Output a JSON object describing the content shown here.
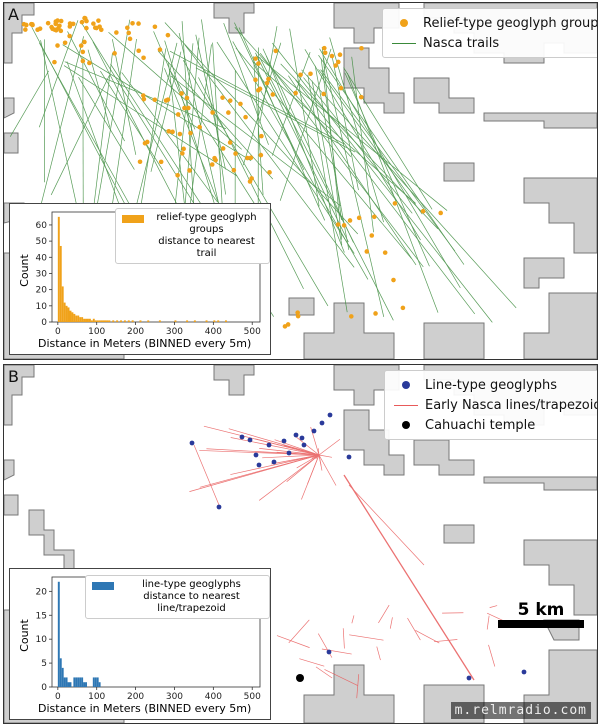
{
  "panels": {
    "a": {
      "label": "A",
      "legend": {
        "items": [
          {
            "label": "Relief-type geoglyph groups",
            "color": "#f0a21a",
            "kind": "dot"
          },
          {
            "label": "Nasca trails",
            "color": "#3a8a3a",
            "kind": "line"
          }
        ]
      },
      "inset": {
        "legend_line1": "relief-type geoglyph groups",
        "legend_line2": "distance to nearest trail",
        "ylabel": "Count",
        "xlabel": "Distance in Meters (BINNED every 5m)",
        "color": "#f0a21a"
      }
    },
    "b": {
      "label": "B",
      "legend": {
        "items": [
          {
            "label": "Line-type geoglyphs",
            "color": "#2a3a9a",
            "kind": "dot"
          },
          {
            "label": "Early Nasca lines/trapezoids",
            "color": "#e85a5a",
            "kind": "line"
          },
          {
            "label": "Cahuachi temple",
            "color": "#000000",
            "kind": "dot"
          }
        ]
      },
      "inset": {
        "legend_line1": "line-type geoglyphs",
        "legend_line2": "distance to nearest line/trapezoid",
        "ylabel": "Count",
        "xlabel": "Distance in Meters (BINNED every 5m)",
        "color": "#2e77b4"
      },
      "scale_label": "5 km"
    }
  },
  "watermark": "m.relmradio.com",
  "chart_data": [
    {
      "type": "bar",
      "title": "",
      "xlabel": "Distance in Meters (BINNED every 5m)",
      "ylabel": "Count",
      "series_label": "relief-type geoglyph groups distance to nearest trail",
      "xlim": [
        -15,
        520
      ],
      "ylim": [
        0,
        68
      ],
      "xticks": [
        0,
        100,
        200,
        300,
        400,
        500
      ],
      "yticks": [
        0,
        10,
        20,
        30,
        40,
        50,
        60
      ],
      "bins": [
        0,
        5,
        10,
        15,
        20,
        25,
        30,
        35,
        40,
        45,
        50,
        55,
        60,
        65,
        70,
        75,
        80,
        85,
        90,
        95,
        100,
        105,
        110,
        115,
        120,
        125,
        130,
        140,
        150,
        160,
        170,
        180,
        190,
        210,
        230,
        260,
        300,
        330,
        350,
        380,
        400,
        410,
        430
      ],
      "values": [
        65,
        47,
        22,
        12,
        10,
        9,
        7,
        6,
        5,
        4,
        4,
        3,
        3,
        2,
        2,
        2,
        2,
        1,
        2,
        1,
        1,
        1,
        1,
        1,
        1,
        1,
        1,
        1,
        1,
        1,
        1,
        1,
        1,
        1,
        1,
        1,
        1,
        1,
        1,
        1,
        1,
        1,
        1
      ]
    },
    {
      "type": "bar",
      "title": "",
      "xlabel": "Distance in Meters (BINNED every 5m)",
      "ylabel": "Count",
      "series_label": "line-type geoglyphs distance to nearest line/trapezoid",
      "xlim": [
        -15,
        520
      ],
      "ylim": [
        0,
        23
      ],
      "xticks": [
        0,
        100,
        200,
        300,
        400,
        500
      ],
      "yticks": [
        0,
        5,
        10,
        15,
        20
      ],
      "bins": [
        0,
        5,
        10,
        15,
        20,
        25,
        30,
        35,
        40,
        45,
        50,
        55,
        60,
        65,
        70,
        75,
        80,
        85,
        90,
        95,
        100,
        105
      ],
      "values": [
        22,
        6,
        4,
        2,
        2,
        1,
        1,
        0,
        2,
        2,
        2,
        2,
        2,
        1,
        1,
        0,
        0,
        0,
        2,
        2,
        2,
        1
      ]
    }
  ]
}
